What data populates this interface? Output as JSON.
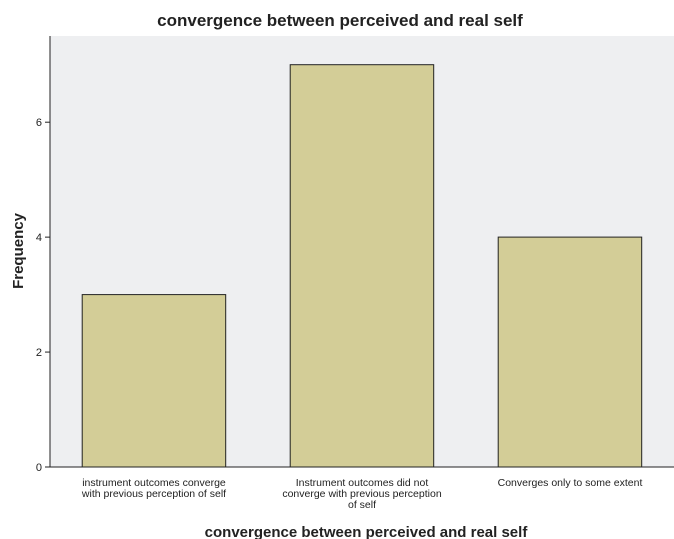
{
  "chart_data": {
    "type": "bar",
    "title": "convergence between perceived and real self",
    "xlabel": "convergence between perceived and real self",
    "ylabel": "Frequency",
    "categories": [
      [
        "instrument outcomes converge",
        "with previous perception of self"
      ],
      [
        "Instrument outcomes did not",
        "converge with previous perception",
        "of self"
      ],
      [
        "Converges only to some extent"
      ]
    ],
    "values": [
      3,
      7,
      4
    ],
    "ylim": [
      0,
      7.5
    ],
    "yticks": [
      0,
      2,
      4,
      6
    ],
    "grid": false,
    "legend": "none",
    "colors": {
      "bar_fill": "#d3cd97",
      "bar_stroke": "#222222",
      "plot_background": "#eeeff1",
      "axis": "#222222"
    }
  }
}
